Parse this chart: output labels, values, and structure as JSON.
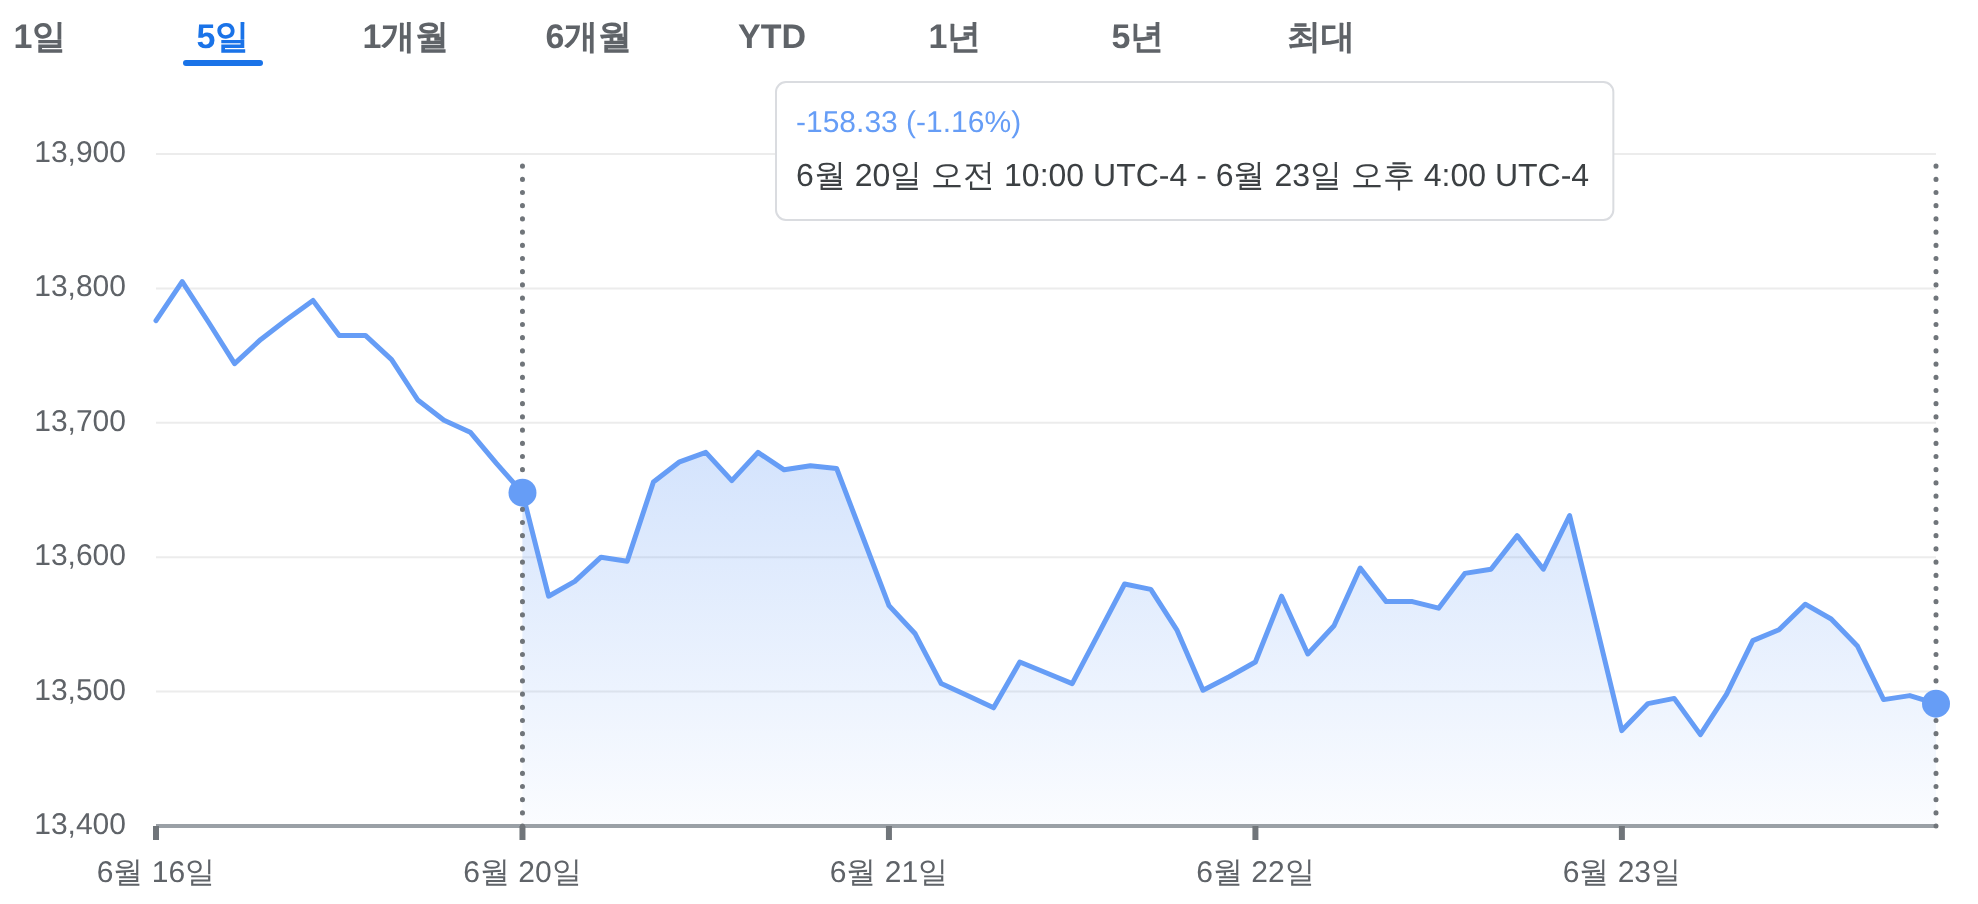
{
  "chart_data": {
    "type": "line",
    "title": "-158.33 (-1.16%)",
    "subtitle": "6월 20일 오전 10:00 UTC-4 - 6월 23일 오후 4:00 UTC-4",
    "annotations": [
      "1일",
      "5일",
      "1개월",
      "6개월",
      "YTD",
      "1년",
      "5년",
      "최대"
    ],
    "categories": [
      "6월 16일",
      null,
      null,
      null,
      null,
      null,
      null,
      null,
      null,
      null,
      null,
      null,
      null,
      null,
      "6월 20일",
      null,
      null,
      null,
      null,
      null,
      null,
      null,
      null,
      null,
      null,
      null,
      null,
      null,
      "6월 21일",
      null,
      null,
      null,
      null,
      null,
      null,
      null,
      null,
      null,
      null,
      null,
      null,
      null,
      "6월 22일",
      null,
      null,
      null,
      null,
      null,
      null,
      null,
      null,
      null,
      null,
      null,
      null,
      null,
      "6월 23일",
      null,
      null,
      null,
      null,
      null,
      null,
      null,
      null,
      null,
      null,
      null,
      null
    ],
    "ylim": [
      13400,
      13900
    ],
    "yticks": [
      {
        "value": 13400,
        "label": "13,400"
      },
      {
        "value": 13500,
        "label": "13,500"
      },
      {
        "value": 13600,
        "label": "13,600"
      },
      {
        "value": 13700,
        "label": "13,700"
      },
      {
        "value": 13800,
        "label": "13,800"
      },
      {
        "value": 13900,
        "label": "13,900"
      }
    ],
    "grid": "y",
    "series": [
      {
        "color": "#669df6",
        "values": [
          13776,
          13805,
          13775,
          13744,
          13762,
          13777,
          13791,
          13765,
          13765,
          13747,
          13717,
          13702,
          13693,
          13670,
          13648,
          null,
          null,
          null,
          null,
          null,
          null,
          null,
          null,
          null,
          null,
          null,
          null,
          null,
          null,
          null,
          null,
          null,
          null,
          null,
          null,
          null,
          null,
          null,
          null,
          null,
          null,
          null,
          null,
          null,
          null,
          null,
          null,
          null,
          null,
          null,
          null,
          null,
          null,
          null,
          null,
          null,
          null,
          null,
          null,
          null,
          null,
          null,
          null,
          null,
          null,
          null,
          null,
          null,
          null
        ]
      },
      {
        "type": "area",
        "color": "#669df6",
        "values": [
          null,
          null,
          null,
          null,
          null,
          null,
          null,
          null,
          null,
          null,
          null,
          null,
          null,
          null,
          13648,
          13571,
          13582,
          13600,
          13597,
          13656,
          13671,
          13678,
          13657,
          13678,
          13665,
          13668,
          13666,
          13615,
          13564,
          13543,
          13506,
          13497,
          13488,
          13522,
          13514,
          13506,
          13543,
          13580,
          13576,
          13546,
          13501,
          13511,
          13522,
          13571,
          13528,
          13549,
          13592,
          13567,
          13567,
          13562,
          13588,
          13591,
          13616,
          13591,
          13631,
          13551,
          13471,
          13491,
          13495,
          13468,
          13498,
          13538,
          13546,
          13565,
          13554,
          13534,
          13494,
          13497,
          13491
        ]
      },
      {
        "type": "scatter",
        "color": "#669df6",
        "values": [
          null,
          null,
          null,
          null,
          null,
          null,
          null,
          null,
          null,
          null,
          null,
          null,
          null,
          null,
          13648,
          null,
          null,
          null,
          null,
          null,
          null,
          null,
          null,
          null,
          null,
          null,
          null,
          null,
          null,
          null,
          null,
          null,
          null,
          null,
          null,
          null,
          null,
          null,
          null,
          null,
          null,
          null,
          null,
          null,
          null,
          null,
          null,
          null,
          null,
          null,
          null,
          null,
          null,
          null,
          null,
          null,
          null,
          null,
          null,
          null,
          null,
          null,
          null,
          null,
          null,
          null,
          null,
          null,
          13491
        ]
      }
    ],
    "ref_lines": [
      {
        "axis": "x",
        "value": "6월 20일",
        "color": "#70757a",
        "line_style": "dotted"
      }
    ]
  }
}
